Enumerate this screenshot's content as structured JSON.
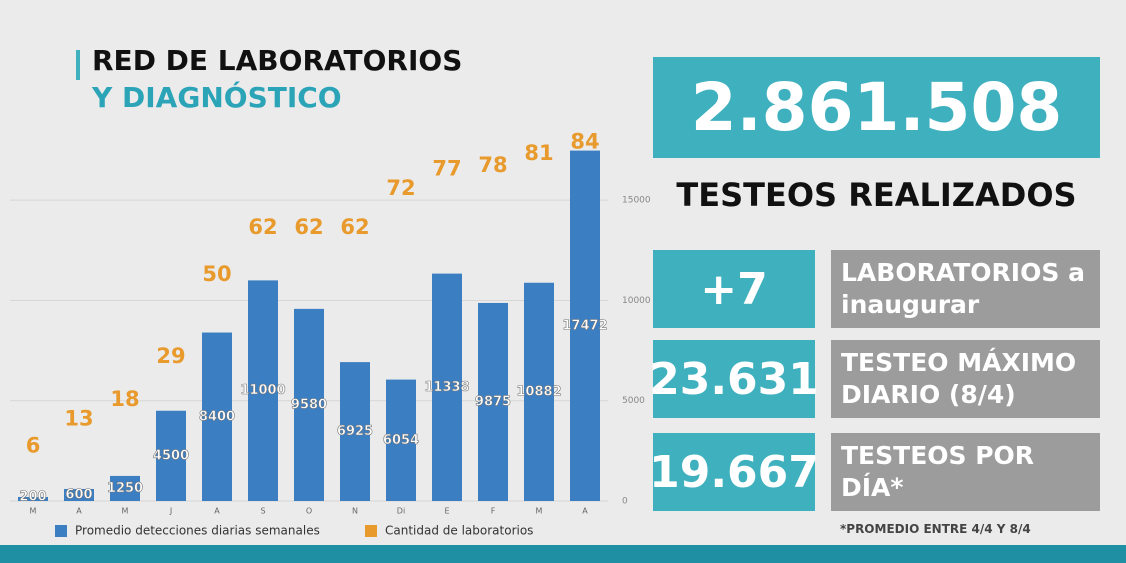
{
  "title": "RED DE LABORATORIOS",
  "subtitle": "Y DIAGNÓSTICO",
  "chart_data": {
    "type": "bar",
    "categories": [
      "M",
      "A",
      "M",
      "J",
      "A",
      "S",
      "O",
      "N",
      "Di",
      "E",
      "F",
      "M",
      "A"
    ],
    "series": [
      {
        "name": "Promedio detecciones diarias semanales",
        "color": "#3b7ec2",
        "values": [
          200,
          600,
          1250,
          4500,
          8400,
          11000,
          9580,
          6925,
          6054,
          11338,
          9875,
          10882,
          17472
        ]
      },
      {
        "name": "Cantidad de laboratorios",
        "color": "#e89a2c",
        "values": [
          6,
          13,
          18,
          29,
          50,
          62,
          62,
          62,
          72,
          77,
          78,
          81,
          84
        ]
      }
    ],
    "ylim": [
      0,
      18000
    ],
    "yticks": [
      0,
      5000,
      10000,
      15000
    ],
    "grid": true
  },
  "total": {
    "value": "2.861.508",
    "label": "TESTEOS REALIZADOS"
  },
  "stats": [
    {
      "value": "+7",
      "label": "LABORATORIOS a inaugurar"
    },
    {
      "value": "23.631",
      "label": "TESTEO MÁXIMO DIARIO (8/4)"
    },
    {
      "value": "19.667",
      "label": "TESTEOS POR DÍA*"
    }
  ],
  "footnote": "*PROMEDIO ENTRE 4/4 Y 8/4"
}
